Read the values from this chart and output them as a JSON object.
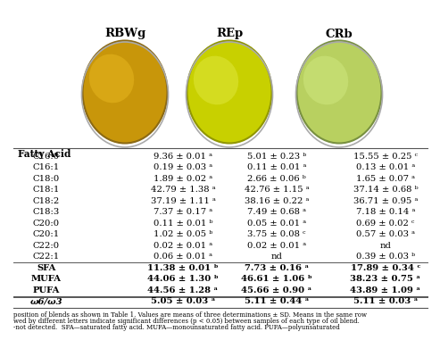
{
  "title_cols": [
    "RBWg",
    "REp",
    "CRb"
  ],
  "row_header": "Fatty Acid",
  "rows": [
    [
      "C16:0",
      "9.36 ± 0.01 ᵃ",
      "5.01 ± 0.23 ᵇ",
      "15.55 ± 0.25 ᶜ"
    ],
    [
      "C16:1",
      "0.19 ± 0.03 ᵃ",
      "0.11 ± 0.01 ᵃ",
      "0.13 ± 0.01 ᵃ"
    ],
    [
      "C18:0",
      "1.89 ± 0.02 ᵃ",
      "2.66 ± 0.06 ᵇ",
      "1.65 ± 0.07 ᵃ"
    ],
    [
      "C18:1",
      "42.79 ± 1.38 ᵃ",
      "42.76 ± 1.15 ᵃ",
      "37.14 ± 0.68 ᵇ"
    ],
    [
      "C18:2",
      "37.19 ± 1.11 ᵃ",
      "38.16 ± 0.22 ᵃ",
      "36.71 ± 0.95 ᵃ"
    ],
    [
      "C18:3",
      "7.37 ± 0.17 ᵃ",
      "7.49 ± 0.68 ᵃ",
      "7.18 ± 0.14 ᵃ"
    ],
    [
      "C20:0",
      "0.11 ± 0.01 ᵇ",
      "0.05 ± 0.01 ᵃ",
      "0.69 ± 0.02 ᶜ"
    ],
    [
      "C20:1",
      "1.02 ± 0.05 ᵇ",
      "3.75 ± 0.08 ᶜ",
      "0.57 ± 0.03 ᵃ"
    ],
    [
      "C22:0",
      "0.02 ± 0.01 ᵃ",
      "0.02 ± 0.01 ᵃ",
      "nd"
    ],
    [
      "C22:1",
      "0.06 ± 0.01 ᵃ",
      "nd",
      "0.39 ± 0.03 ᵇ"
    ],
    [
      "SFA",
      "11.38 ± 0.01 ᵇ",
      "7.73 ± 0.16 ᵃ",
      "17.89 ± 0.34 ᶜ"
    ],
    [
      "MUFA",
      "44.06 ± 1.30 ᵇ",
      "46.61 ± 1.06 ᵇ",
      "38.23 ± 0.75 ᵃ"
    ],
    [
      "PUFA",
      "44.56 ± 1.28 ᵃ",
      "45.66 ± 0.90 ᵃ",
      "43.89 ± 1.09 ᵃ"
    ],
    [
      "ω6/ω3",
      "5.05 ± 0.03 ᵃ",
      "5.11 ± 0.44 ᵃ",
      "5.11 ± 0.03 ᵃ"
    ]
  ],
  "separator_rows": [
    10,
    13
  ],
  "bold_rows": [
    10,
    11,
    12,
    13
  ],
  "italic_rows": [
    13
  ],
  "bg_color": "#ffffff",
  "header_color": "#ffffff",
  "line_color": "#555555",
  "font_size": 7.2,
  "header_font_size": 9.5,
  "footnote": "position of blends as shown in Table 1. Values are means of three determinations ± SD. Means in the same row\nwed by different letters indicate significant differences (p < 0.05) between samples of each type of oil blend.\n-not detected.  SFA—saturated fatty acid. MUFA—monounsaturated fatty acid. PUFA—polyunsaturated"
}
